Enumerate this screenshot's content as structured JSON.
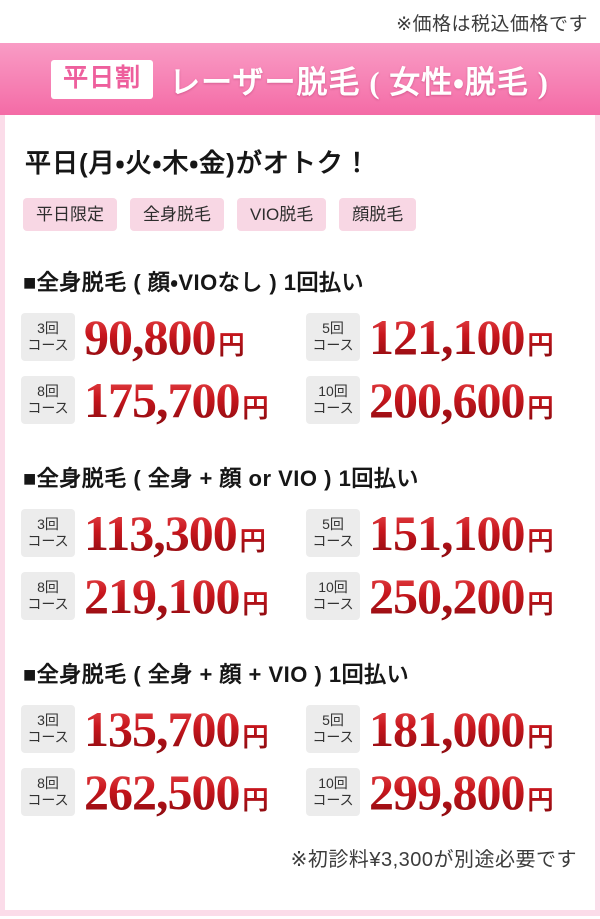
{
  "top_note": "※価格は税込価格です",
  "header": {
    "badge": "平日割",
    "title": "レーザー脱毛 ( 女性・脱毛 )"
  },
  "intro": {
    "heading": "平日(月・火・木・金)がオトク！",
    "tags": [
      {
        "label": "平日限定"
      },
      {
        "label": "全身脱毛"
      },
      {
        "label": "VIO脱毛"
      },
      {
        "label": "顔脱毛"
      }
    ]
  },
  "sections": [
    {
      "title": "■全身脱毛 ( 顔・VIOなし ) 1回払い",
      "prices": [
        {
          "course_count": "3回",
          "course_suffix": "コース",
          "amount": "90,800",
          "unit": "円"
        },
        {
          "course_count": "5回",
          "course_suffix": "コース",
          "amount": "121,100",
          "unit": "円"
        },
        {
          "course_count": "8回",
          "course_suffix": "コース",
          "amount": "175,700",
          "unit": "円"
        },
        {
          "course_count": "10回",
          "course_suffix": "コース",
          "amount": "200,600",
          "unit": "円"
        }
      ]
    },
    {
      "title": "■全身脱毛 ( 全身 + 顔 or VIO ) 1回払い",
      "prices": [
        {
          "course_count": "3回",
          "course_suffix": "コース",
          "amount": "113,300",
          "unit": "円"
        },
        {
          "course_count": "5回",
          "course_suffix": "コース",
          "amount": "151,100",
          "unit": "円"
        },
        {
          "course_count": "8回",
          "course_suffix": "コース",
          "amount": "219,100",
          "unit": "円"
        },
        {
          "course_count": "10回",
          "course_suffix": "コース",
          "amount": "250,200",
          "unit": "円"
        }
      ]
    },
    {
      "title": "■全身脱毛 ( 全身 + 顔 + VIO ) 1回払い",
      "prices": [
        {
          "course_count": "3回",
          "course_suffix": "コース",
          "amount": "135,700",
          "unit": "円"
        },
        {
          "course_count": "5回",
          "course_suffix": "コース",
          "amount": "181,000",
          "unit": "円"
        },
        {
          "course_count": "8回",
          "course_suffix": "コース",
          "amount": "262,500",
          "unit": "円"
        },
        {
          "course_count": "10回",
          "course_suffix": "コース",
          "amount": "299,800",
          "unit": "円"
        }
      ]
    }
  ],
  "bottom_note": "※初診料¥3,300が別途必要です",
  "colors": {
    "header_gradient_top": "#f99cc5",
    "header_gradient_bottom": "#f46ba6",
    "badge_text_pink": "#ee5f9d",
    "card_border_pink": "#fbdce9",
    "tag_background": "#f8d7e4",
    "course_badge_background": "#ececec",
    "price_red_top": "#e84a4d",
    "price_red_bottom": "#8c0b10"
  }
}
